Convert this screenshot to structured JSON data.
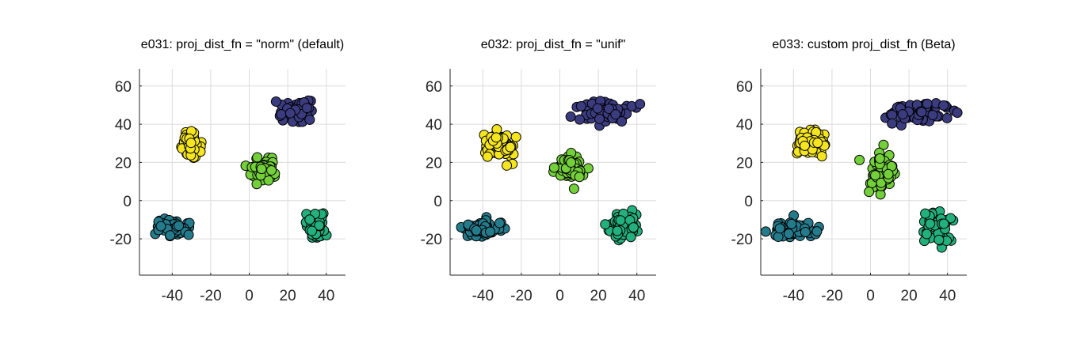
{
  "chart_data": [
    {
      "type": "scatter",
      "title": "e031: proj_dist_fn = \"norm\" (default)",
      "xlabel": "",
      "ylabel": "",
      "xlim": [
        -57,
        50
      ],
      "ylim": [
        -39,
        69
      ],
      "xticks": [
        -40,
        -20,
        0,
        20,
        40
      ],
      "yticks": [
        -20,
        0,
        20,
        40,
        60
      ],
      "grid": true,
      "clusters": [
        {
          "color": "#3b3b80",
          "center": [
            24,
            47
          ],
          "spread": [
            4.5,
            2.5
          ],
          "count": 70
        },
        {
          "color": "#f5e51f",
          "center": [
            -30,
            29
          ],
          "spread": [
            2.5,
            3.0
          ],
          "count": 60
        },
        {
          "color": "#73cf3a",
          "center": [
            7,
            16
          ],
          "spread": [
            3.5,
            2.8
          ],
          "count": 60
        },
        {
          "color": "#247b8c",
          "center": [
            -40,
            -14
          ],
          "spread": [
            4.0,
            2.0
          ],
          "count": 70
        },
        {
          "color": "#22b07c",
          "center": [
            35,
            -14
          ],
          "spread": [
            2.8,
            3.0
          ],
          "count": 60
        }
      ]
    },
    {
      "type": "scatter",
      "title": "e032: proj_dist_fn = \"unif\"",
      "xlabel": "",
      "ylabel": "",
      "xlim": [
        -57,
        50
      ],
      "ylim": [
        -39,
        69
      ],
      "xticks": [
        -40,
        -20,
        0,
        20,
        40
      ],
      "yticks": [
        -20,
        0,
        20,
        40,
        60
      ],
      "grid": true,
      "clusters": [
        {
          "color": "#3b3b80",
          "center": [
            24,
            46
          ],
          "spread": [
            6.0,
            2.8
          ],
          "count": 80
        },
        {
          "color": "#f5e51f",
          "center": [
            -31,
            29
          ],
          "spread": [
            3.5,
            3.5
          ],
          "count": 60
        },
        {
          "color": "#73cf3a",
          "center": [
            6,
            17
          ],
          "spread": [
            4.0,
            3.5
          ],
          "count": 60
        },
        {
          "color": "#247b8c",
          "center": [
            -40,
            -15
          ],
          "spread": [
            5.5,
            2.2
          ],
          "count": 70
        },
        {
          "color": "#22b07c",
          "center": [
            33,
            -14
          ],
          "spread": [
            3.5,
            3.8
          ],
          "count": 60
        }
      ]
    },
    {
      "type": "scatter",
      "title": "e033: custom proj_dist_fn (Beta)",
      "xlabel": "",
      "ylabel": "",
      "xlim": [
        -57,
        50
      ],
      "ylim": [
        -39,
        69
      ],
      "xticks": [
        -40,
        -20,
        0,
        20,
        40
      ],
      "yticks": [
        -20,
        0,
        20,
        40,
        60
      ],
      "grid": true,
      "clusters": [
        {
          "color": "#3b3b80",
          "center": [
            25,
            46
          ],
          "spread": [
            7.5,
            2.5
          ],
          "count": 80
        },
        {
          "color": "#f5e51f",
          "center": [
            -31,
            30
          ],
          "spread": [
            3.8,
            4.0
          ],
          "count": 60
        },
        {
          "color": "#73cf3a",
          "center": [
            6,
            16
          ],
          "spread": [
            4.0,
            5.0
          ],
          "count": 60
        },
        {
          "color": "#247b8c",
          "center": [
            -40,
            -15
          ],
          "spread": [
            6.0,
            2.0
          ],
          "count": 70
        },
        {
          "color": "#22b07c",
          "center": [
            34,
            -14
          ],
          "spread": [
            4.0,
            4.5
          ],
          "count": 60
        }
      ]
    }
  ]
}
